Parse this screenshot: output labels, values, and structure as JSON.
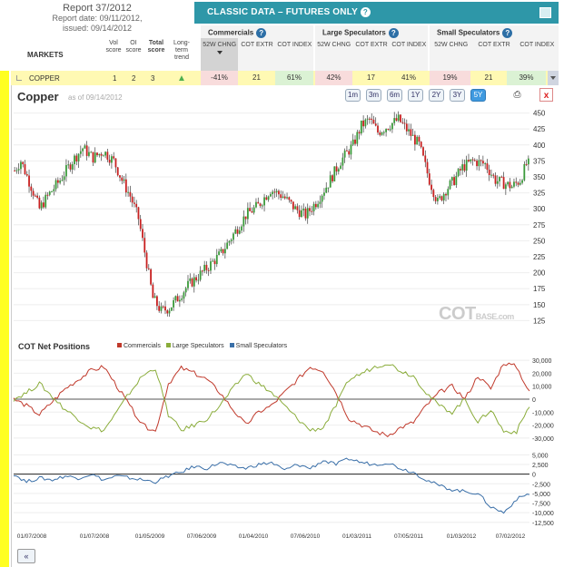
{
  "report": {
    "title": "Report 37/2012",
    "date_line": "Report date: 09/11/2012,",
    "issued_line": "issued: 09/14/2012"
  },
  "header": {
    "banner": "CLASSIC DATA – FUTURES ONLY",
    "markets_label": "MARKETS",
    "vol_score": "Vol score",
    "oi_score": "OI score",
    "total_score": "Total score",
    "long_term_trend": "Long-term trend",
    "groups": [
      {
        "name": "Commercials",
        "cols": [
          "52W CHNG",
          "COT EXTR",
          "COT INDEX"
        ]
      },
      {
        "name": "Large Speculators",
        "cols": [
          "52W CHNG",
          "COT EXTR",
          "COT INDEX"
        ]
      },
      {
        "name": "Small Speculators",
        "cols": [
          "52W CHNG",
          "COT EXTR",
          "COT INDEX"
        ]
      }
    ]
  },
  "row": {
    "market": "COPPER",
    "vol": "1",
    "oi": "2",
    "total": "3",
    "values": [
      "-41%",
      "21",
      "61%",
      "42%",
      "17",
      "41%",
      "19%",
      "21",
      "39%"
    ]
  },
  "chart": {
    "title": "Copper",
    "as_of": "as of 09/14/2012",
    "ranges": [
      "1m",
      "3m",
      "6m",
      "1Y",
      "2Y",
      "3Y",
      "5Y"
    ],
    "active_range": "5Y",
    "cot_title": "COT Net Positions",
    "legend": [
      {
        "name": "Commercials",
        "color": "#c0392b"
      },
      {
        "name": "Large Speculators",
        "color": "#8aac3a"
      },
      {
        "name": "Small Speculators",
        "color": "#3a6fa8"
      }
    ],
    "watermark_main": "COT",
    "watermark_sub": "BASE.com",
    "nav_back": "«"
  },
  "chart_data": [
    {
      "type": "candlestick",
      "title": "Copper",
      "ylim": [
        110,
        465
      ],
      "yticks": [
        125,
        150,
        175,
        200,
        225,
        250,
        275,
        300,
        325,
        350,
        375,
        400,
        425,
        450
      ],
      "x_labels": [
        "01/07/2008",
        "01/07/2008",
        "01/05/2009",
        "07/06/2009",
        "01/04/2010",
        "07/06/2010",
        "01/03/2011",
        "07/05/2011",
        "01/03/2012",
        "07/02/2012"
      ],
      "price_path": [
        [
          0,
          360
        ],
        [
          3,
          375
        ],
        [
          8,
          335
        ],
        [
          12,
          300
        ],
        [
          16,
          320
        ],
        [
          22,
          345
        ],
        [
          28,
          375
        ],
        [
          33,
          395
        ],
        [
          38,
          380
        ],
        [
          43,
          390
        ],
        [
          48,
          375
        ],
        [
          52,
          345
        ],
        [
          56,
          320
        ],
        [
          60,
          285
        ],
        [
          64,
          215
        ],
        [
          67,
          160
        ],
        [
          71,
          140
        ],
        [
          75,
          145
        ],
        [
          79,
          160
        ],
        [
          84,
          180
        ],
        [
          89,
          195
        ],
        [
          94,
          210
        ],
        [
          100,
          230
        ],
        [
          106,
          260
        ],
        [
          112,
          290
        ],
        [
          118,
          305
        ],
        [
          124,
          330
        ],
        [
          130,
          320
        ],
        [
          136,
          300
        ],
        [
          141,
          290
        ],
        [
          146,
          310
        ],
        [
          152,
          340
        ],
        [
          158,
          375
        ],
        [
          164,
          400
        ],
        [
          168,
          430
        ],
        [
          172,
          440
        ],
        [
          176,
          420
        ],
        [
          181,
          430
        ],
        [
          186,
          440
        ],
        [
          191,
          420
        ],
        [
          196,
          400
        ],
        [
          201,
          345
        ],
        [
          205,
          310
        ],
        [
          209,
          330
        ],
        [
          213,
          345
        ],
        [
          217,
          365
        ],
        [
          222,
          375
        ],
        [
          228,
          370
        ],
        [
          233,
          345
        ],
        [
          237,
          340
        ],
        [
          241,
          335
        ],
        [
          245,
          345
        ],
        [
          248,
          370
        ]
      ]
    },
    {
      "type": "line",
      "title": "COT Net Positions",
      "yticks": [
        -30000,
        -20000,
        -10000,
        0,
        10000,
        20000,
        30000
      ],
      "series": [
        {
          "name": "Commercials",
          "values": [
            0,
            -5000,
            -12000,
            -2000,
            8000,
            15000,
            22000,
            25000,
            10000,
            -5000,
            -20000,
            -25000,
            12000,
            24000,
            20000,
            15000,
            5000,
            -8000,
            -20000,
            -10000,
            -5000,
            5000,
            15000,
            25000,
            22000,
            5000,
            -15000,
            -20000,
            -25000,
            -28000,
            -22000,
            -18000,
            -5000,
            5000,
            10000,
            0,
            18000,
            8000,
            28000,
            25000,
            5000
          ]
        },
        {
          "name": "Large Speculators",
          "values": [
            0,
            5000,
            12000,
            2000,
            -8000,
            -15000,
            -22000,
            -24000,
            -10000,
            5000,
            18000,
            24000,
            -12000,
            -24000,
            -20000,
            -15000,
            -5000,
            8000,
            20000,
            12000,
            5000,
            -5000,
            -15000,
            -24000,
            -22000,
            -5000,
            15000,
            20000,
            25000,
            28000,
            22000,
            18000,
            5000,
            -5000,
            -10000,
            0,
            -18000,
            -8000,
            -25000,
            -25000,
            -5000
          ]
        },
        {
          "name": "Small Speculators",
          "values": [
            0,
            -2000,
            -1000,
            -1500,
            -500,
            -1000,
            0,
            -1500,
            -500,
            -1000,
            -1500,
            -2000,
            -500,
            500,
            2000,
            1500,
            3000,
            2000,
            1500,
            2500,
            3000,
            1000,
            2500,
            1500,
            3500,
            2500,
            4000,
            3000,
            2500,
            3000,
            1500,
            500,
            -1500,
            -3000,
            -4000,
            -4500,
            -5000,
            -8500,
            -10000,
            -6500,
            -5000
          ]
        }
      ],
      "small_yticks": [
        -12500,
        -10000,
        -7500,
        -5000,
        -2500,
        0,
        2500,
        5000
      ]
    }
  ]
}
